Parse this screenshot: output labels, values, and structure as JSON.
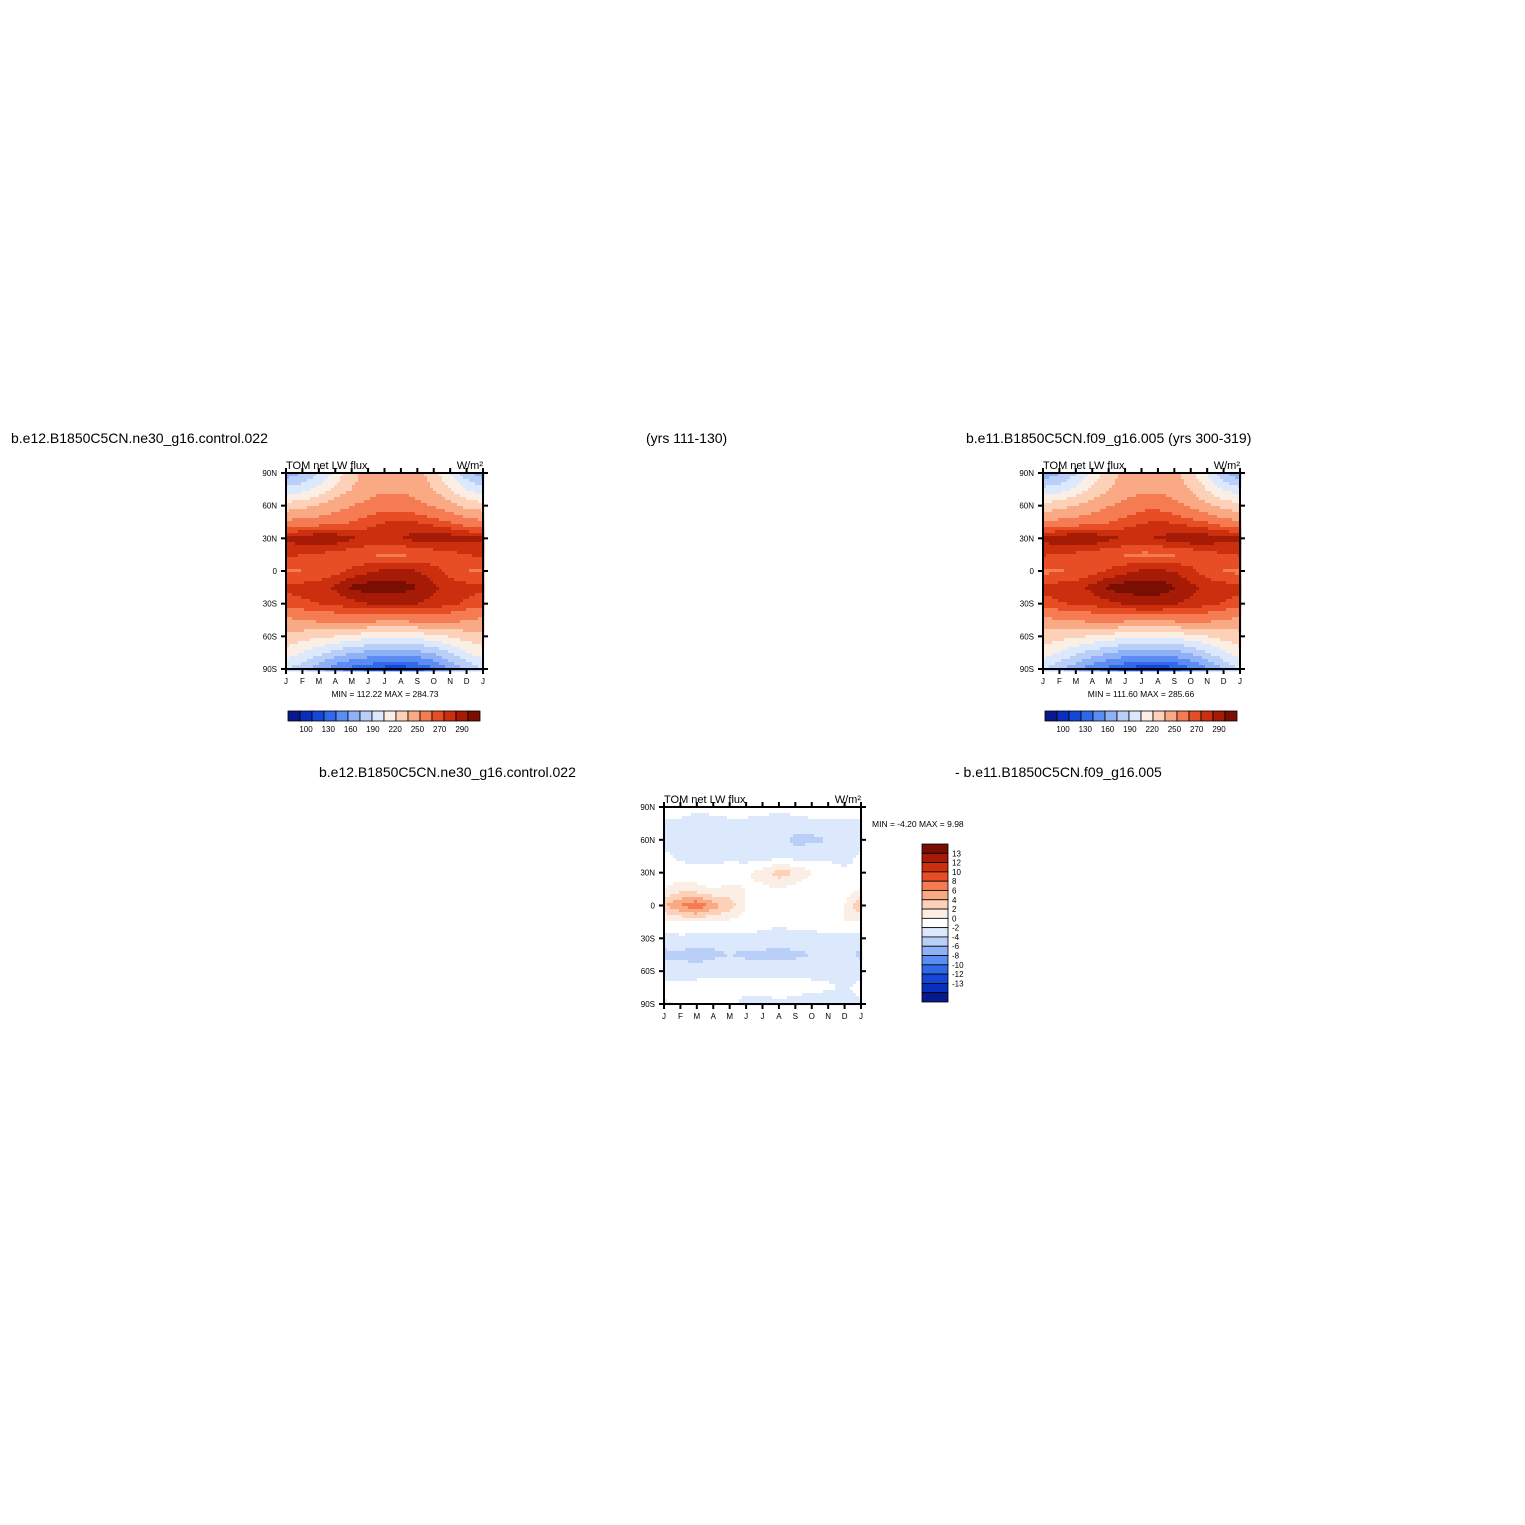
{
  "headers": {
    "top_left": "b.e12.B1850C5CN.ne30_g16.control.022",
    "top_center": "(yrs 111-130)",
    "top_right": "b.e11.B1850C5CN.f09_g16.005 (yrs 300-319)",
    "bottom_left": "b.e12.B1850C5CN.ne30_g16.control.022",
    "bottom_right": "- b.e11.B1850C5CN.f09_g16.005"
  },
  "chart_data": [
    {
      "type": "heatmap",
      "title": "TOM net LW flux",
      "units": "W/m²",
      "x_ticks": [
        "J",
        "F",
        "M",
        "A",
        "M",
        "J",
        "J",
        "A",
        "S",
        "O",
        "N",
        "D",
        "J"
      ],
      "y_ticks": [
        "90N",
        "60N",
        "30N",
        "0",
        "30S",
        "60S",
        "90S"
      ],
      "stats": "MIN = 112.22 MAX = 284.73",
      "min": 112.22,
      "max": 284.73,
      "colorbar": {
        "orientation": "horizontal",
        "labels": [
          "100",
          "130",
          "160",
          "190",
          "220",
          "250",
          "270",
          "290"
        ],
        "colors": [
          "#08198c",
          "#0a2fbd",
          "#1546d8",
          "#2f68e8",
          "#5b8cf2",
          "#8eb0f6",
          "#b9cff8",
          "#dce8fb",
          "#fbeee4",
          "#fcd1b7",
          "#f9a984",
          "#f47b52",
          "#e84e25",
          "#cc2f0d",
          "#a51b06",
          "#7a0e02"
        ]
      },
      "pattern": "annual cycle of outgoing longwave: maxima in subtropical bands near 15N and 15S, minimum polar values",
      "z": [
        [
          150,
          160,
          175,
          195,
          215,
          225,
          230,
          230,
          225,
          212,
          190,
          165,
          150
        ],
        [
          180,
          185,
          195,
          210,
          220,
          228,
          232,
          232,
          228,
          220,
          205,
          190,
          180
        ],
        [
          212,
          215,
          222,
          228,
          235,
          240,
          245,
          245,
          240,
          234,
          225,
          215,
          212
        ],
        [
          238,
          240,
          242,
          245,
          250,
          255,
          260,
          262,
          260,
          255,
          250,
          242,
          238
        ],
        [
          272,
          276,
          280,
          278,
          272,
          268,
          268,
          270,
          275,
          278,
          276,
          274,
          272
        ],
        [
          262,
          260,
          258,
          255,
          252,
          250,
          248,
          248,
          250,
          252,
          256,
          260,
          262
        ],
        [
          248,
          250,
          252,
          256,
          262,
          268,
          272,
          274,
          270,
          264,
          256,
          250,
          248
        ],
        [
          262,
          264,
          266,
          272,
          282,
          285,
          286,
          285,
          280,
          272,
          266,
          264,
          262
        ],
        [
          255,
          258,
          260,
          262,
          266,
          270,
          272,
          272,
          270,
          266,
          262,
          258,
          255
        ],
        [
          232,
          235,
          238,
          240,
          242,
          240,
          238,
          238,
          240,
          242,
          240,
          236,
          232
        ],
        [
          215,
          212,
          208,
          205,
          200,
          196,
          194,
          194,
          196,
          200,
          206,
          212,
          215
        ],
        [
          200,
          190,
          180,
          170,
          162,
          156,
          153,
          152,
          155,
          162,
          175,
          188,
          200
        ],
        [
          175,
          165,
          150,
          135,
          125,
          118,
          114,
          113,
          116,
          128,
          145,
          162,
          175
        ]
      ]
    },
    {
      "type": "heatmap",
      "title": "TOM net LW flux",
      "units": "W/m²",
      "x_ticks": [
        "J",
        "F",
        "M",
        "A",
        "M",
        "J",
        "J",
        "A",
        "S",
        "O",
        "N",
        "D",
        "J"
      ],
      "y_ticks": [
        "90N",
        "60N",
        "30N",
        "0",
        "30S",
        "60S",
        "90S"
      ],
      "stats": "MIN = 111.60 MAX = 285.66",
      "min": 111.6,
      "max": 285.66,
      "colorbar": {
        "orientation": "horizontal",
        "labels": [
          "100",
          "130",
          "160",
          "190",
          "220",
          "250",
          "270",
          "290"
        ],
        "colors": [
          "#08198c",
          "#0a2fbd",
          "#1546d8",
          "#2f68e8",
          "#5b8cf2",
          "#8eb0f6",
          "#b9cff8",
          "#dce8fb",
          "#fbeee4",
          "#fcd1b7",
          "#f9a984",
          "#f47b52",
          "#e84e25",
          "#cc2f0d",
          "#a51b06",
          "#7a0e02"
        ]
      },
      "pattern": "annual cycle of outgoing longwave: maxima in subtropical bands near 15N and 15S, minimum polar values",
      "z": [
        [
          148,
          158,
          173,
          194,
          214,
          224,
          230,
          230,
          224,
          211,
          189,
          163,
          148
        ],
        [
          179,
          184,
          194,
          209,
          219,
          227,
          232,
          232,
          227,
          219,
          204,
          189,
          179
        ],
        [
          211,
          214,
          221,
          227,
          234,
          240,
          246,
          246,
          240,
          233,
          224,
          214,
          211
        ],
        [
          237,
          239,
          241,
          244,
          249,
          254,
          259,
          261,
          259,
          254,
          249,
          241,
          237
        ],
        [
          273,
          277,
          281,
          279,
          273,
          269,
          269,
          271,
          276,
          279,
          277,
          275,
          273
        ],
        [
          261,
          259,
          257,
          254,
          251,
          249,
          247,
          247,
          249,
          251,
          255,
          259,
          261
        ],
        [
          247,
          249,
          251,
          255,
          261,
          267,
          271,
          273,
          269,
          263,
          255,
          249,
          247
        ],
        [
          263,
          265,
          267,
          273,
          283,
          286,
          287,
          286,
          281,
          273,
          267,
          265,
          263
        ],
        [
          256,
          259,
          261,
          263,
          267,
          271,
          273,
          273,
          271,
          267,
          263,
          259,
          256
        ],
        [
          231,
          234,
          237,
          239,
          241,
          239,
          237,
          237,
          239,
          241,
          239,
          235,
          231
        ],
        [
          214,
          211,
          207,
          204,
          199,
          195,
          193,
          193,
          195,
          199,
          205,
          211,
          214
        ],
        [
          199,
          189,
          179,
          169,
          161,
          155,
          152,
          151,
          154,
          161,
          174,
          187,
          199
        ],
        [
          174,
          164,
          149,
          134,
          124,
          117,
          113,
          112,
          115,
          127,
          144,
          161,
          174
        ]
      ]
    },
    {
      "type": "heatmap",
      "title": "TOM net LW flux",
      "units": "W/m²",
      "x_ticks": [
        "J",
        "F",
        "M",
        "A",
        "M",
        "J",
        "J",
        "A",
        "S",
        "O",
        "N",
        "D",
        "J"
      ],
      "y_ticks": [
        "90N",
        "60N",
        "30N",
        "0",
        "30S",
        "60S",
        "90S"
      ],
      "stats": "MIN = -4.20 MAX = 9.98",
      "min": -4.2,
      "max": 9.98,
      "colorbar": {
        "orientation": "vertical",
        "labels": [
          "13",
          "12",
          "10",
          "8",
          "6",
          "4",
          "2",
          "0",
          "-2",
          "-4",
          "-6",
          "-8",
          "-10",
          "-12",
          "-13"
        ],
        "colors": [
          "#7a0e02",
          "#a51b06",
          "#cc2f0d",
          "#e84e25",
          "#f47b52",
          "#f9a984",
          "#fcd1b7",
          "#fbeee4",
          "#ffffff",
          "#dce8fb",
          "#b9cff8",
          "#8eb0f6",
          "#5b8cf2",
          "#2f68e8",
          "#1546d8",
          "#0a2fbd",
          "#08198c"
        ]
      },
      "pattern": "difference field mostly within +/-2 with a positive streak near 5S in Feb-Apr",
      "z": [
        [
          1,
          1,
          0.5,
          0.5,
          1,
          1,
          1,
          0.5,
          1,
          2,
          2,
          1,
          1
        ],
        [
          -0.5,
          -0.5,
          -1,
          -0.5,
          -0.5,
          -0.5,
          -1,
          -1,
          -1,
          -1,
          -0.5,
          -0.5,
          -0.5
        ],
        [
          -1,
          -1,
          -0.5,
          -0.5,
          -1,
          -1,
          -1,
          -1.5,
          -2.5,
          -2.5,
          -2,
          -1,
          -1
        ],
        [
          0.5,
          -0.5,
          -1,
          -0.5,
          -0.5,
          -1,
          -1,
          -1,
          -1,
          -0.5,
          -0.5,
          -1,
          0.5
        ],
        [
          0.5,
          1,
          1,
          0.5,
          1,
          1.5,
          3,
          5,
          4,
          2,
          1,
          0.5,
          0.5
        ],
        [
          2,
          3,
          2.5,
          2,
          2.5,
          2,
          1.5,
          2,
          1,
          0.5,
          0.5,
          1,
          2
        ],
        [
          6,
          8,
          9.98,
          7,
          5,
          2,
          1,
          0.5,
          1,
          1,
          0.5,
          2,
          6
        ],
        [
          1.5,
          2,
          2,
          2,
          1.5,
          1,
          0.5,
          0.5,
          0.5,
          0.5,
          1,
          2,
          1.5
        ],
        [
          -1,
          -0.5,
          -1,
          -1,
          -1,
          -0.5,
          -0.5,
          -1,
          -0.5,
          -0.5,
          -0.5,
          -1,
          -1
        ],
        [
          -2.5,
          -2.5,
          -3,
          -2.5,
          -2,
          -2.5,
          -2.5,
          -3,
          -2.5,
          -2,
          -2,
          -1,
          -2.5
        ],
        [
          -1,
          -1,
          -1,
          -0.5,
          -0.5,
          -0.5,
          -0.5,
          -0.5,
          -0.5,
          -0.5,
          -1,
          -1,
          -1
        ],
        [
          1,
          0.5,
          1,
          0.5,
          0.5,
          0.5,
          0.5,
          1,
          0.5,
          0.5,
          0.5,
          -0.5,
          1
        ],
        [
          -0.5,
          0.5,
          1,
          0.5,
          0.5,
          -0.5,
          -0.5,
          -0.5,
          -0.5,
          -1,
          -2,
          -1,
          -0.5
        ]
      ]
    }
  ]
}
